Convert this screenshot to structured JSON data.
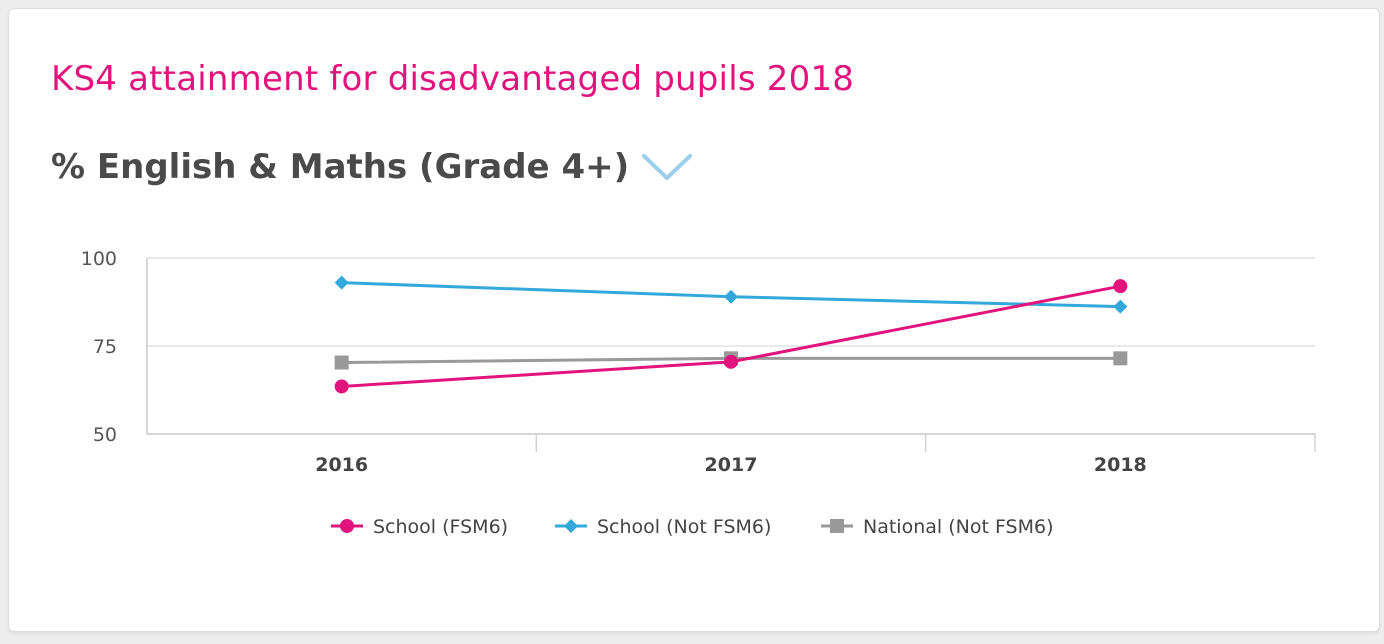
{
  "widget": {
    "title": "KS4 attainment for disadvantaged pupils 2018",
    "measure_label": "% English & Maths (Grade 4+)",
    "dropdown_icon": "chevron-down-icon"
  },
  "colors": {
    "title": "#e2137d",
    "fsm6": "#e2137d",
    "not_fsm6": "#33a8dc",
    "national": "#999999",
    "chevron": "#9dcfeb"
  },
  "chart_data": {
    "type": "line",
    "categories": [
      "2016",
      "2017",
      "2018"
    ],
    "ylim": [
      50,
      100
    ],
    "yticks": [
      50,
      75,
      100
    ],
    "grid": true,
    "legend_position": "bottom",
    "series": [
      {
        "name": "School (FSM6)",
        "marker": "circle",
        "color": "#e2137d",
        "values": [
          63.5,
          70.5,
          92
        ]
      },
      {
        "name": "School (Not FSM6)",
        "marker": "diamond",
        "color": "#33a8dc",
        "values": [
          93,
          89,
          86.2
        ]
      },
      {
        "name": "National (Not FSM6)",
        "marker": "square",
        "color": "#999999",
        "values": [
          70.3,
          71.5,
          71.5
        ]
      }
    ]
  }
}
